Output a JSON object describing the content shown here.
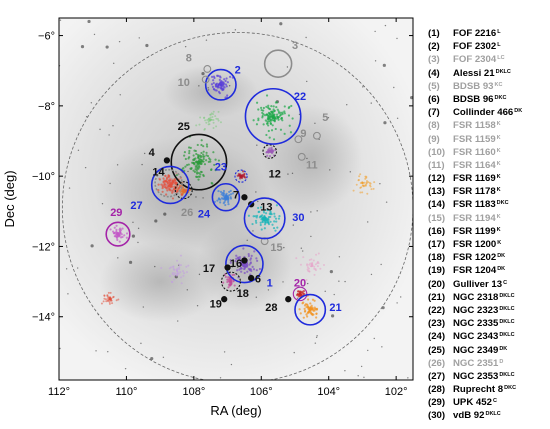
{
  "chart_data": {
    "type": "scatter",
    "xlabel": "RA (deg)",
    "ylabel": "Dec (deg)",
    "xlim": [
      112,
      101.5
    ],
    "ylim": [
      -15.8,
      -5.5
    ],
    "x_ticks": [
      112,
      110,
      108,
      106,
      104,
      102
    ],
    "x_tick_labels": [
      "112°",
      "110°",
      "108°",
      "106°",
      "104°",
      "102°"
    ],
    "y_ticks": [
      -6,
      -8,
      -10,
      -12,
      -14
    ],
    "y_tick_labels": [
      "−6°",
      "−8°",
      "−10°",
      "−12°",
      "−14°"
    ],
    "field_boundary": {
      "center": [
        106.7,
        -10.9
      ],
      "radius_deg": 5.2,
      "style": "dashed"
    },
    "colors": {
      "black": "#111111",
      "gray": "#8c8c8c",
      "blue": "#1f2bdc",
      "purple": "#a424a8"
    },
    "clusters": [
      {
        "id": 1,
        "name": "FOF 2216",
        "flags": "L",
        "ra": 106.5,
        "dec": -12.5,
        "r": 0.55,
        "color": "blue",
        "dim": false,
        "label": "1",
        "lx": 105.75,
        "ly": -13.05
      },
      {
        "id": 2,
        "name": "FOF 2302",
        "flags": "L",
        "ra": 107.2,
        "dec": -7.4,
        "r": 0.45,
        "color": "blue",
        "dim": false,
        "label": "2",
        "lx": 106.7,
        "ly": -7.0
      },
      {
        "id": 3,
        "name": "FOF 2304",
        "flags": "LC",
        "ra": 105.5,
        "dec": -6.8,
        "r": 0.4,
        "color": "gray",
        "dim": true,
        "label": "3",
        "lx": 105.0,
        "ly": -6.3
      },
      {
        "id": 4,
        "name": "Alessi 21",
        "flags": "DKLC",
        "ra": 108.8,
        "dec": -9.55,
        "r": 0.12,
        "color": "black",
        "dim": false,
        "label": "4",
        "lx": 109.25,
        "ly": -9.35
      },
      {
        "id": 5,
        "name": "BDSB 93",
        "flags": "KC",
        "ra": 104.35,
        "dec": -8.85,
        "r": 0.1,
        "color": "gray",
        "dim": true,
        "label": "5",
        "lx": 104.1,
        "ly": -8.35
      },
      {
        "id": 6,
        "name": "BDSB 96",
        "flags": "DKC",
        "ra": 106.3,
        "dec": -12.9,
        "r": 0.1,
        "color": "black",
        "dim": false,
        "label": "6",
        "lx": 106.1,
        "ly": -12.95
      },
      {
        "id": 7,
        "name": "Collinder 466",
        "flags": "DK",
        "ra": 106.5,
        "dec": -10.6,
        "r": 0.12,
        "color": "black",
        "dim": false,
        "label": "7",
        "lx": 106.75,
        "ly": -10.55
      },
      {
        "id": 8,
        "name": "FSR 1158",
        "flags": "K",
        "ra": 107.6,
        "dec": -6.95,
        "r": 0.1,
        "color": "gray",
        "dim": true,
        "label": "8",
        "lx": 108.15,
        "ly": -6.65
      },
      {
        "id": 9,
        "name": "FSR 1159",
        "flags": "K",
        "ra": 104.9,
        "dec": -8.95,
        "r": 0.1,
        "color": "gray",
        "dim": true,
        "label": "9",
        "lx": 104.75,
        "ly": -8.8
      },
      {
        "id": 10,
        "name": "FSR 1160",
        "flags": "K",
        "ra": 107.65,
        "dec": -7.25,
        "r": 0.1,
        "color": "gray",
        "dim": true,
        "label": "10",
        "lx": 108.3,
        "ly": -7.35
      },
      {
        "id": 11,
        "name": "FSR 1164",
        "flags": "K",
        "ra": 104.8,
        "dec": -9.45,
        "r": 0.1,
        "color": "gray",
        "dim": true,
        "label": "11",
        "lx": 104.5,
        "ly": -9.7
      },
      {
        "id": 12,
        "name": "FSR 1169",
        "flags": "K",
        "ra": 105.75,
        "dec": -9.3,
        "r": 0.2,
        "color": "black",
        "dim": false,
        "label": "12",
        "lx": 105.6,
        "ly": -9.95
      },
      {
        "id": 13,
        "name": "FSR 1178",
        "flags": "K",
        "ra": 106.3,
        "dec": -10.8,
        "r": 0.1,
        "color": "black",
        "dim": false,
        "label": "13",
        "lx": 105.85,
        "ly": -10.9
      },
      {
        "id": 14,
        "name": "FSR 1183",
        "flags": "DKC",
        "ra": 108.3,
        "dec": -10.4,
        "r": 0.25,
        "color": "black",
        "dim": false,
        "label": "14",
        "lx": 109.05,
        "ly": -9.9
      },
      {
        "id": 15,
        "name": "FSR 1194",
        "flags": "K",
        "ra": 105.9,
        "dec": -11.85,
        "r": 0.1,
        "color": "gray",
        "dim": true,
        "label": "15",
        "lx": 105.55,
        "ly": -12.05
      },
      {
        "id": 16,
        "name": "FSR 1199",
        "flags": "K",
        "ra": 106.5,
        "dec": -12.4,
        "r": 0.12,
        "color": "black",
        "dim": false,
        "label": "16",
        "lx": 106.75,
        "ly": -12.5
      },
      {
        "id": 17,
        "name": "FSR 1200",
        "flags": "K",
        "ra": 107.0,
        "dec": -12.6,
        "r": 0.1,
        "color": "black",
        "dim": false,
        "label": "17",
        "lx": 107.55,
        "ly": -12.65
      },
      {
        "id": 18,
        "name": "FSR 1202",
        "flags": "DK",
        "ra": 106.9,
        "dec": -13.0,
        "r": 0.28,
        "color": "black",
        "dim": false,
        "label": "18",
        "lx": 106.55,
        "ly": -13.35
      },
      {
        "id": 19,
        "name": "FSR 1204",
        "flags": "DK",
        "ra": 107.1,
        "dec": -13.5,
        "r": 0.1,
        "color": "black",
        "dim": false,
        "label": "19",
        "lx": 107.35,
        "ly": -13.65
      },
      {
        "id": 20,
        "name": "Gulliver 13",
        "flags": "C",
        "ra": 104.85,
        "dec": -13.35,
        "r": 0.2,
        "color": "purple",
        "dim": false,
        "label": "20",
        "lx": 104.85,
        "ly": -13.05
      },
      {
        "id": 21,
        "name": "NGC 2318",
        "flags": "DKLC",
        "ra": 104.55,
        "dec": -13.8,
        "r": 0.45,
        "color": "blue",
        "dim": false,
        "label": "21",
        "lx": 103.8,
        "ly": -13.75
      },
      {
        "id": 22,
        "name": "NGC 2323",
        "flags": "DKLC",
        "ra": 105.65,
        "dec": -8.3,
        "r": 0.82,
        "color": "blue",
        "dim": false,
        "label": "22",
        "lx": 104.85,
        "ly": -7.75
      },
      {
        "id": 23,
        "name": "NGC 2335",
        "flags": "DKLC",
        "ra": 106.6,
        "dec": -10.0,
        "r": 0.18,
        "color": "blue",
        "dim": false,
        "label": "23",
        "lx": 107.2,
        "ly": -9.75
      },
      {
        "id": 24,
        "name": "NGC 2343",
        "flags": "DKLC",
        "ra": 107.05,
        "dec": -10.6,
        "r": 0.4,
        "color": "blue",
        "dim": false,
        "label": "24",
        "lx": 107.7,
        "ly": -11.1
      },
      {
        "id": 25,
        "name": "NGC 2349",
        "flags": "DK",
        "ra": 107.85,
        "dec": -9.6,
        "r": 0.82,
        "color": "black",
        "dim": false,
        "label": "25",
        "lx": 108.3,
        "ly": -8.6
      },
      {
        "id": 26,
        "name": "NGC 2351",
        "flags": "D",
        "ra": 108.75,
        "dec": -10.2,
        "r": 0.4,
        "color": "gray",
        "dim": true,
        "label": "26",
        "lx": 108.2,
        "ly": -11.05
      },
      {
        "id": 27,
        "name": "NGC 2353",
        "flags": "DKLC",
        "ra": 108.7,
        "dec": -10.25,
        "r": 0.55,
        "color": "blue",
        "dim": false,
        "label": "27",
        "lx": 109.7,
        "ly": -10.85
      },
      {
        "id": 28,
        "name": "Ruprecht 8",
        "flags": "DKC",
        "ra": 105.2,
        "dec": -13.5,
        "r": 0.1,
        "color": "black",
        "dim": false,
        "label": "28",
        "lx": 105.7,
        "ly": -13.75
      },
      {
        "id": 29,
        "name": "UPK 452",
        "flags": "C",
        "ra": 110.25,
        "dec": -11.65,
        "r": 0.35,
        "color": "purple",
        "dim": false,
        "label": "29",
        "lx": 110.3,
        "ly": -11.05
      },
      {
        "id": 30,
        "name": "vdB 92",
        "flags": "DKLC",
        "ra": 105.9,
        "dec": -11.2,
        "r": 0.6,
        "color": "blue",
        "dim": false,
        "label": "30",
        "lx": 104.9,
        "ly": -11.2
      }
    ],
    "legend_position": "right"
  }
}
